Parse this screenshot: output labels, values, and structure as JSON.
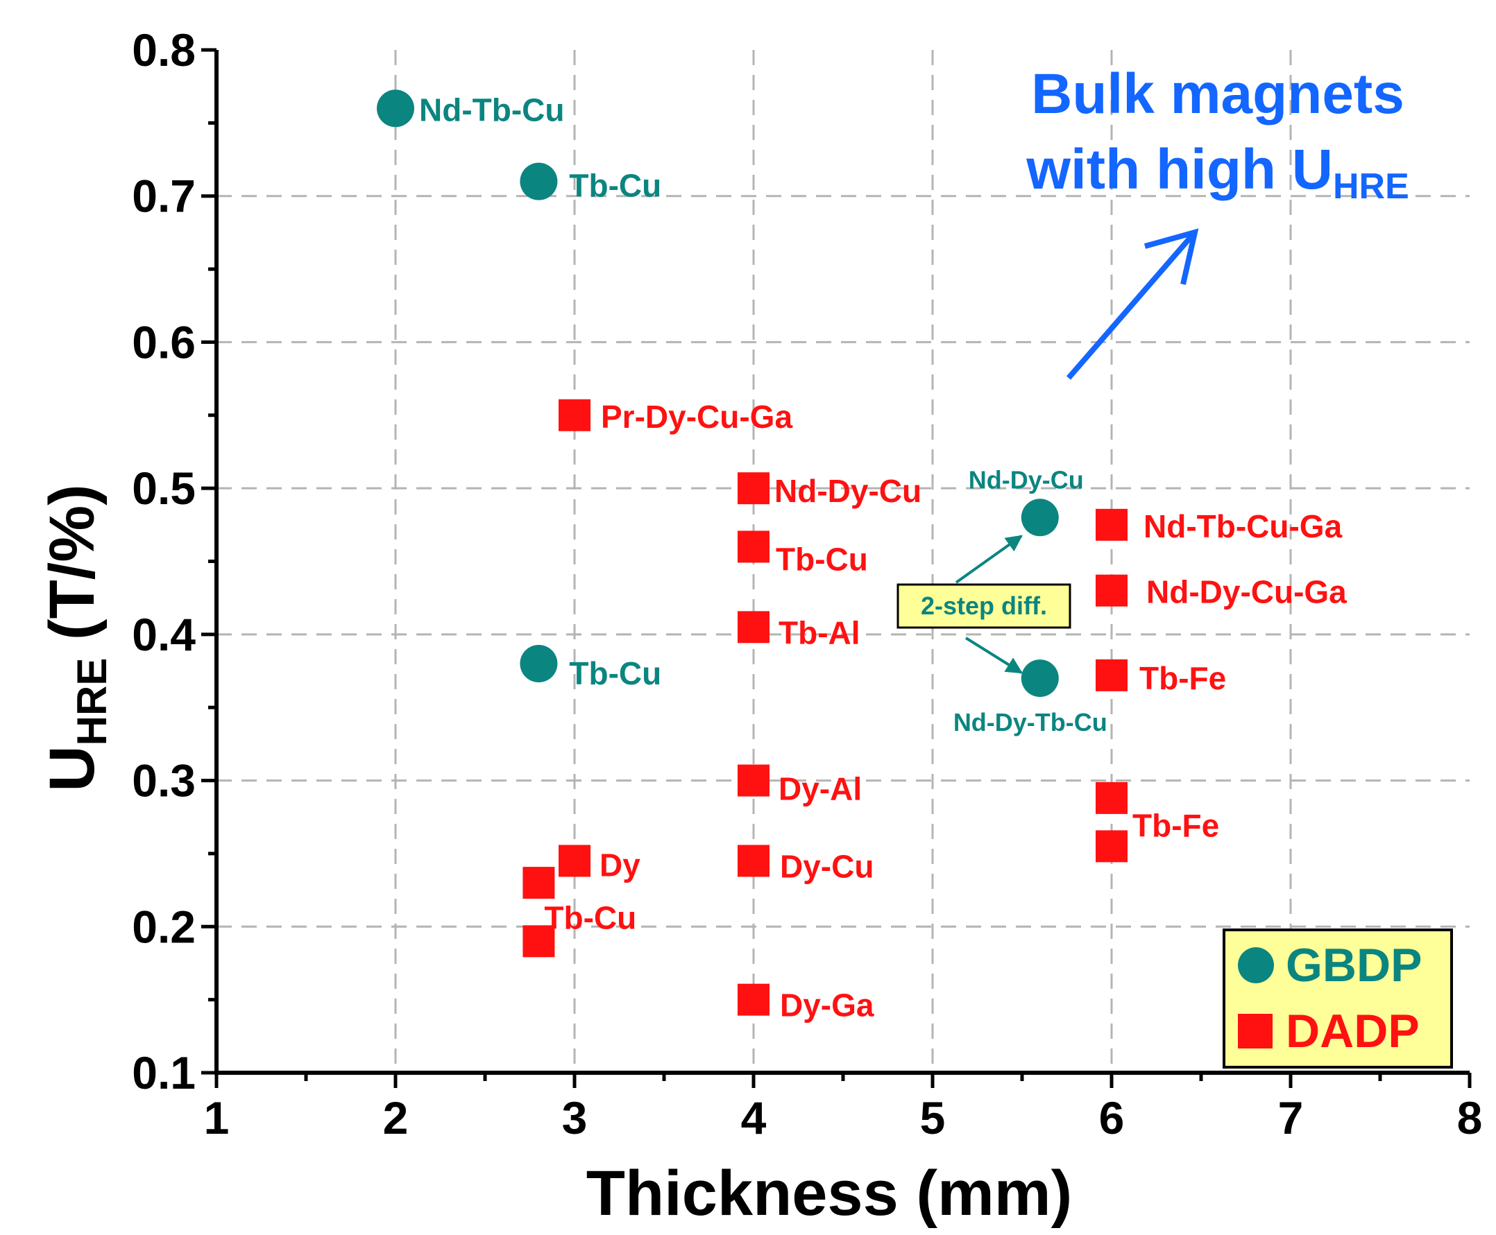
{
  "colors": {
    "gbdp": "#0b8580",
    "dadp": "#ff1111",
    "annotation": "#1366ff",
    "legend_bg": "#ffff99"
  },
  "chart_data": {
    "type": "scatter",
    "xlabel": "Thickness (mm)",
    "ylabel": {
      "main": "U",
      "sub": "HRE",
      "suffix": " (T/%)"
    },
    "xlim": [
      1,
      8
    ],
    "ylim": [
      0.1,
      0.8
    ],
    "x_ticks": [
      "1",
      "2",
      "3",
      "4",
      "5",
      "6",
      "7",
      "8"
    ],
    "y_ticks": [
      "0.1",
      "0.2",
      "0.3",
      "0.4",
      "0.5",
      "0.6",
      "0.7",
      "0.8"
    ],
    "grid": true,
    "legend_position": "bottom-right",
    "series": [
      {
        "name": "GBDP",
        "marker": "circle",
        "points": [
          {
            "x": 2.0,
            "y": 0.76,
            "label": "Nd-Tb-Cu"
          },
          {
            "x": 2.8,
            "y": 0.71,
            "label": "Tb-Cu"
          },
          {
            "x": 2.8,
            "y": 0.38,
            "label": "Tb-Cu"
          },
          {
            "x": 5.6,
            "y": 0.48,
            "label": "Nd-Dy-Cu"
          },
          {
            "x": 5.6,
            "y": 0.37,
            "label": "Nd-Dy-Tb-Cu"
          }
        ]
      },
      {
        "name": "DADP",
        "marker": "square",
        "points": [
          {
            "x": 3.0,
            "y": 0.55,
            "label": "Pr-Dy-Cu-Ga"
          },
          {
            "x": 4.0,
            "y": 0.5,
            "label": "Nd-Dy-Cu"
          },
          {
            "x": 4.0,
            "y": 0.46,
            "label": "Tb-Cu"
          },
          {
            "x": 4.0,
            "y": 0.405,
            "label": "Tb-Al"
          },
          {
            "x": 4.0,
            "y": 0.3,
            "label": "Dy-Al"
          },
          {
            "x": 4.0,
            "y": 0.245,
            "label": "Dy-Cu"
          },
          {
            "x": 4.0,
            "y": 0.15,
            "label": "Dy-Ga"
          },
          {
            "x": 3.0,
            "y": 0.245,
            "label": "Dy"
          },
          {
            "x": 2.8,
            "y": 0.23,
            "label": ""
          },
          {
            "x": 2.8,
            "y": 0.19,
            "label": "Tb-Cu"
          },
          {
            "x": 6.0,
            "y": 0.475,
            "label": "Nd-Tb-Cu-Ga"
          },
          {
            "x": 6.0,
            "y": 0.43,
            "label": "Nd-Dy-Cu-Ga"
          },
          {
            "x": 6.0,
            "y": 0.372,
            "label": "Tb-Fe"
          },
          {
            "x": 6.0,
            "y": 0.288,
            "label": ""
          },
          {
            "x": 6.0,
            "y": 0.255,
            "label": "Tb-Fe"
          }
        ]
      }
    ],
    "annotations": {
      "bulk_line1": "Bulk magnets",
      "bulk_line2_main": "with high U",
      "bulk_line2_sub": "HRE",
      "two_step": "2-step diff."
    }
  }
}
